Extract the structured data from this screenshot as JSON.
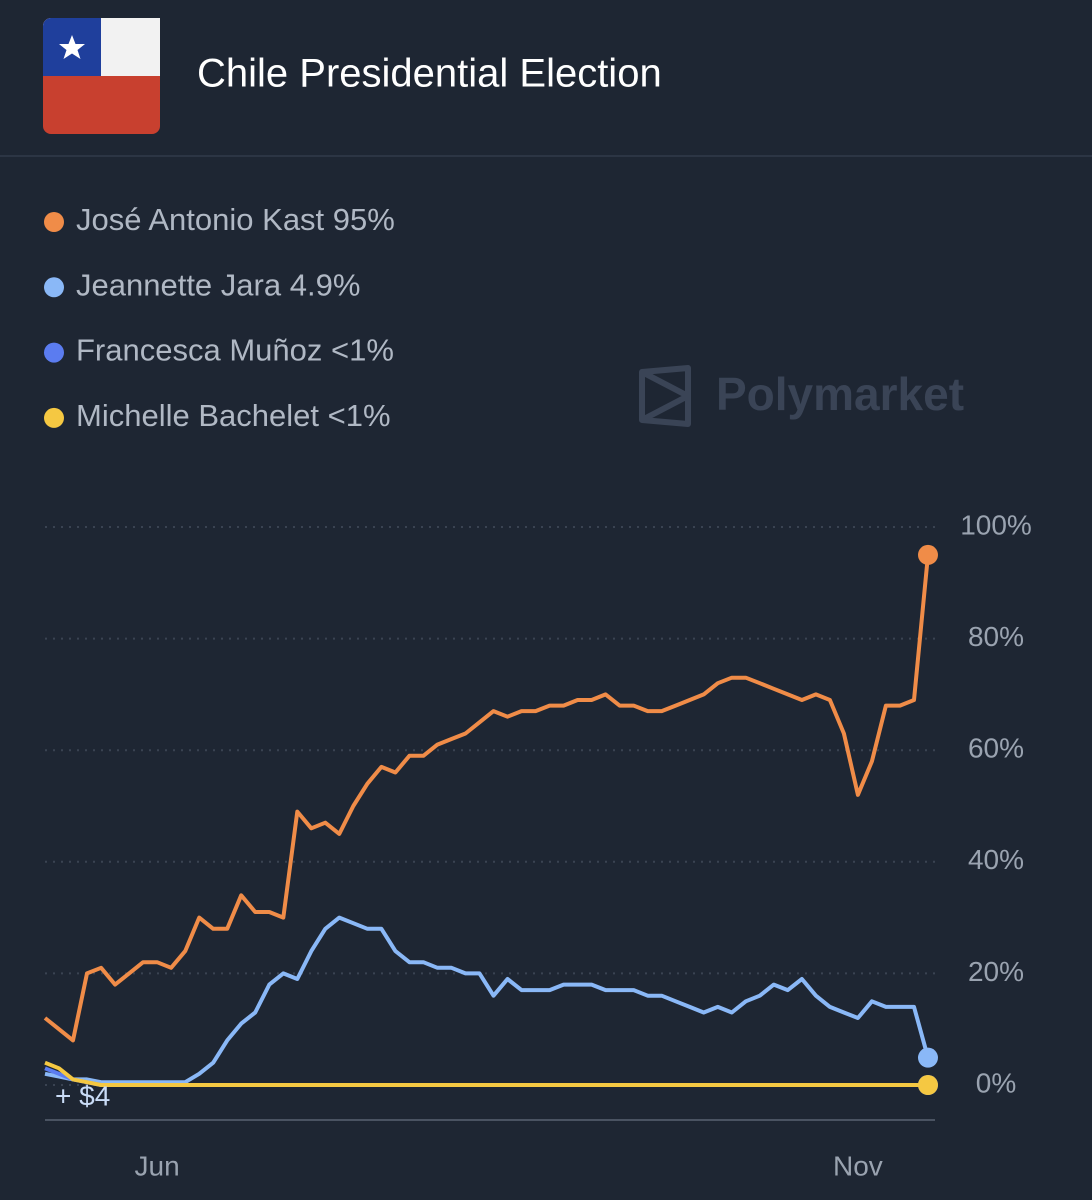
{
  "header": {
    "title": "Chile Presidential Election"
  },
  "watermark": "Polymarket",
  "chart_data": {
    "type": "line",
    "annotation": "+ $4",
    "x": [
      5.2,
      5.3,
      5.4,
      5.5,
      5.6,
      5.7,
      5.8,
      5.9,
      6.0,
      6.1,
      6.2,
      6.3,
      6.4,
      6.5,
      6.6,
      6.7,
      6.8,
      6.9,
      7.0,
      7.1,
      7.2,
      7.3,
      7.4,
      7.5,
      7.6,
      7.7,
      7.8,
      7.9,
      8.0,
      8.1,
      8.2,
      8.3,
      8.4,
      8.5,
      8.6,
      8.7,
      8.8,
      8.9,
      9.0,
      9.1,
      9.2,
      9.3,
      9.4,
      9.5,
      9.6,
      9.7,
      9.8,
      9.9,
      10.0,
      10.1,
      10.2,
      10.3,
      10.4,
      10.5,
      10.6,
      10.7,
      10.8,
      10.9,
      11.0,
      11.1,
      11.2,
      11.3,
      11.4,
      11.5
    ],
    "xlim": [
      5.2,
      11.55
    ],
    "xticks": [
      {
        "value": 6,
        "label": "Jun"
      },
      {
        "value": 11,
        "label": "Nov"
      }
    ],
    "ylim": [
      0,
      100
    ],
    "yticks": [
      {
        "value": 0,
        "label": "0%"
      },
      {
        "value": 20,
        "label": "20%"
      },
      {
        "value": 40,
        "label": "40%"
      },
      {
        "value": 60,
        "label": "60%"
      },
      {
        "value": 80,
        "label": "80%"
      },
      {
        "value": 100,
        "label": "100%"
      }
    ],
    "grid": true,
    "series": [
      {
        "name": "José Antonio Kast",
        "legend_value": "95%",
        "color": "#f08c48",
        "values": [
          12,
          10,
          8,
          20,
          21,
          18,
          20,
          22,
          22,
          21,
          24,
          30,
          28,
          28,
          34,
          31,
          31,
          30,
          49,
          46,
          47,
          45,
          50,
          54,
          57,
          56,
          59,
          59,
          61,
          62,
          63,
          65,
          67,
          66,
          67,
          67,
          68,
          68,
          69,
          69,
          70,
          68,
          68,
          67,
          67,
          68,
          69,
          70,
          72,
          73,
          73,
          72,
          71,
          70,
          69,
          70,
          69,
          63,
          52,
          58,
          68,
          68,
          69,
          95
        ]
      },
      {
        "name": "Jeannette Jara",
        "legend_value": "4.9%",
        "color": "#8ab8f7",
        "values": [
          2,
          1.5,
          1,
          1,
          0.5,
          0.5,
          0.5,
          0.5,
          0.5,
          0.5,
          0.5,
          2,
          4,
          8,
          11,
          13,
          18,
          20,
          19,
          24,
          28,
          30,
          29,
          28,
          28,
          24,
          22,
          22,
          21,
          21,
          20,
          20,
          16,
          19,
          17,
          17,
          17,
          18,
          18,
          18,
          17,
          17,
          17,
          16,
          16,
          15,
          14,
          13,
          14,
          13,
          15,
          16,
          18,
          17,
          19,
          16,
          14,
          13,
          12,
          15,
          14,
          14,
          14,
          4.9
        ]
      },
      {
        "name": "Francesca Muñoz",
        "legend_value": "<1%",
        "color": "#5b7cf0",
        "values": [
          3,
          2,
          1,
          0.5,
          0,
          0,
          0,
          0,
          0,
          0,
          0,
          0,
          0,
          0,
          0,
          0,
          0,
          0,
          0,
          0,
          0,
          0,
          0,
          0,
          0,
          0,
          0,
          0,
          0,
          0,
          0,
          0,
          0,
          0,
          0,
          0,
          0,
          0,
          0,
          0,
          0,
          0,
          0,
          0,
          0,
          0,
          0,
          0,
          0,
          0,
          0,
          0,
          0,
          0,
          0,
          0,
          0,
          0,
          0,
          0,
          0,
          0,
          0,
          0
        ]
      },
      {
        "name": "Michelle Bachelet",
        "legend_value": "<1%",
        "color": "#f5c842",
        "values": [
          4,
          3,
          1,
          0.5,
          0,
          0,
          0,
          0,
          0,
          0,
          0,
          0,
          0,
          0,
          0,
          0,
          0,
          0,
          0,
          0,
          0,
          0,
          0,
          0,
          0,
          0,
          0,
          0,
          0,
          0,
          0,
          0,
          0,
          0,
          0,
          0,
          0,
          0,
          0,
          0,
          0,
          0,
          0,
          0,
          0,
          0,
          0,
          0,
          0,
          0,
          0,
          0,
          0,
          0,
          0,
          0,
          0,
          0,
          0,
          0,
          0,
          0,
          0,
          0
        ]
      }
    ]
  }
}
